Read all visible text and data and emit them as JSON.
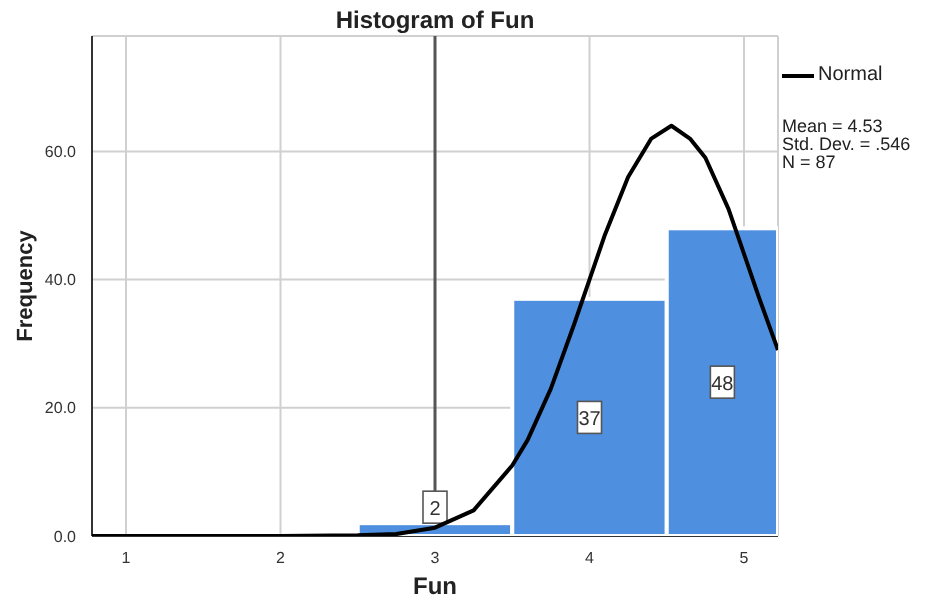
{
  "chart_data": {
    "type": "histogram",
    "title": "Histogram of Fun",
    "xlabel": "Fun",
    "ylabel": "Frequency",
    "bins": [
      2.5,
      3.5,
      4.5,
      5.22
    ],
    "values": [
      2,
      37,
      48
    ],
    "color": "#4f8fe0",
    "value_labels": [
      "2",
      "37",
      "48"
    ],
    "series": [
      {
        "type": "line",
        "name": "Normal",
        "color": "#000000",
        "x": [
          0.78,
          2.0,
          2.5,
          2.75,
          3.0,
          3.25,
          3.5,
          3.6,
          3.75,
          3.9,
          4.0,
          4.1,
          4.25,
          4.4,
          4.53,
          4.65,
          4.75,
          4.9,
          5.0,
          5.1,
          5.22
        ],
        "values": [
          0,
          0,
          0.1,
          0.3,
          1.3,
          4,
          11,
          15,
          23,
          33,
          40,
          47,
          56,
          62,
          64,
          62,
          59,
          51,
          44,
          37,
          29
        ]
      }
    ],
    "xlim": [
      0.78,
      5.22
    ],
    "xticks": [
      1,
      2,
      3,
      4,
      5
    ],
    "ylim": [
      0,
      78
    ],
    "yticks": [
      {
        "value": 0,
        "label": "0.0"
      },
      {
        "value": 20,
        "label": "20.0"
      },
      {
        "value": 40,
        "label": "40.0"
      },
      {
        "value": 60,
        "label": "60.0"
      }
    ],
    "ref_lines": [
      {
        "axis": "x",
        "value": 3,
        "color": "#555555"
      }
    ],
    "grid": true,
    "legend": "top right",
    "annotations": [
      "Mean = 4.53",
      "Std. Dev. = .546",
      "N = 87"
    ]
  }
}
